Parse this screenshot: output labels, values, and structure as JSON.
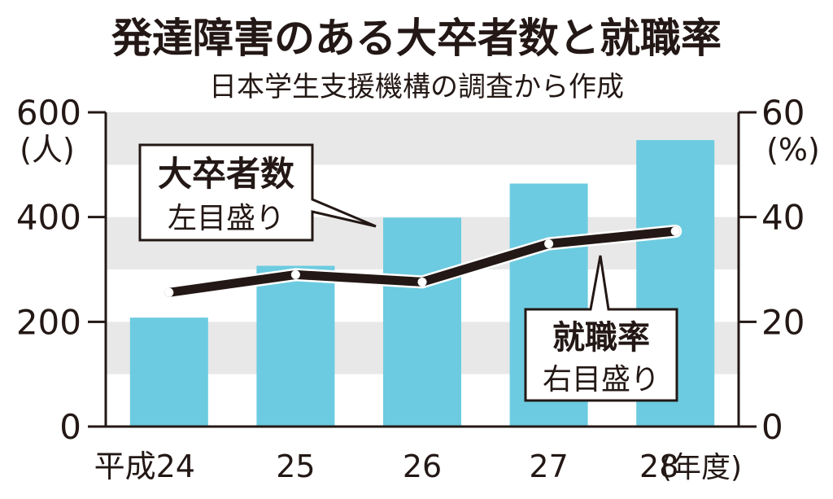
{
  "title": "発達障害のある大卒者数と就職率",
  "subtitle": "日本学生支援機構の調査から作成",
  "colors": {
    "bar": "#6ccbe0",
    "band": "#e8e8e8",
    "line": "#231815",
    "axis": "#231815"
  },
  "chart_data": {
    "type": "bar",
    "categories": [
      "平成24",
      "25",
      "26",
      "27",
      "28"
    ],
    "x_suffix": "(年度)",
    "series": [
      {
        "name": "大卒者数",
        "type": "bar",
        "axis": "left",
        "values": [
          208,
          307,
          399,
          464,
          547
        ]
      },
      {
        "name": "就職率",
        "type": "line",
        "axis": "right",
        "values": [
          25.6,
          29.0,
          27.6,
          34.9,
          37.3
        ]
      }
    ],
    "left_axis": {
      "unit": "(人)",
      "range": [
        0,
        600
      ],
      "ticks": [
        0,
        200,
        400,
        600
      ]
    },
    "right_axis": {
      "unit": "(%)",
      "range": [
        0,
        60
      ],
      "ticks": [
        0,
        20,
        40,
        60
      ]
    },
    "callouts": [
      {
        "title": "大卒者数",
        "sub": "左目盛り"
      },
      {
        "title": "就職率",
        "sub": "右目盛り"
      }
    ]
  }
}
